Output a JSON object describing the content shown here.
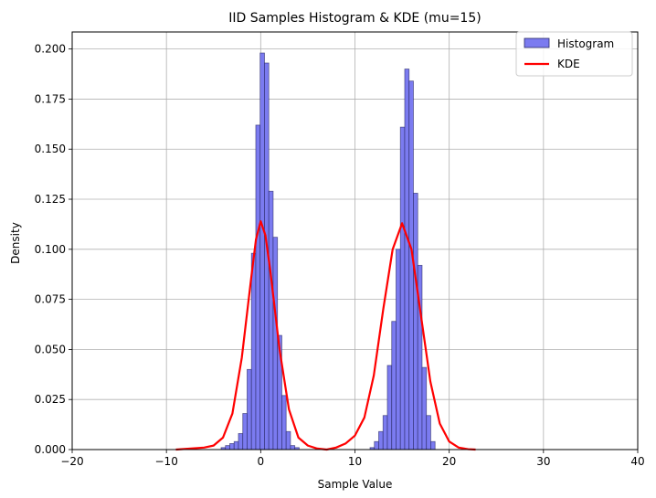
{
  "chart_data": {
    "type": "bar",
    "title": "IID Samples Histogram & KDE (mu=15)",
    "xlabel": "Sample Value",
    "ylabel": "Density",
    "xlim": [
      -20,
      40
    ],
    "ylim": [
      0,
      0.2085
    ],
    "xticks": [
      -20,
      -10,
      0,
      10,
      20,
      30,
      40
    ],
    "xtick_labels": [
      "−20",
      "−10",
      "0",
      "10",
      "20",
      "30",
      "40"
    ],
    "yticks": [
      0,
      0.025,
      0.05,
      0.075,
      0.1,
      0.125,
      0.15,
      0.175,
      0.2
    ],
    "ytick_labels": [
      "0.000",
      "0.025",
      "0.050",
      "0.075",
      "0.100",
      "0.125",
      "0.150",
      "0.175",
      "0.200"
    ],
    "grid": true,
    "legend_position": "upper right",
    "colors": {
      "histogram_fill": "#7b7bf0",
      "histogram_edge": "#2a2a66",
      "kde": "#ff0000"
    },
    "series": [
      {
        "name": "Histogram",
        "kind": "histogram",
        "bin_width": 0.46,
        "bins": [
          [
            -4.2,
            0.001
          ],
          [
            -3.74,
            0.002
          ],
          [
            -3.28,
            0.003
          ],
          [
            -2.82,
            0.004
          ],
          [
            -2.36,
            0.008
          ],
          [
            -1.9,
            0.018
          ],
          [
            -1.44,
            0.04
          ],
          [
            -0.98,
            0.098
          ],
          [
            -0.52,
            0.162
          ],
          [
            -0.06,
            0.198
          ],
          [
            0.4,
            0.193
          ],
          [
            0.86,
            0.129
          ],
          [
            1.32,
            0.106
          ],
          [
            1.78,
            0.057
          ],
          [
            2.24,
            0.027
          ],
          [
            2.7,
            0.009
          ],
          [
            3.16,
            0.002
          ],
          [
            3.62,
            0.001
          ],
          [
            11.6,
            0.001
          ],
          [
            12.06,
            0.004
          ],
          [
            12.52,
            0.009
          ],
          [
            12.98,
            0.017
          ],
          [
            13.44,
            0.042
          ],
          [
            13.9,
            0.064
          ],
          [
            14.36,
            0.1
          ],
          [
            14.82,
            0.161
          ],
          [
            15.28,
            0.19
          ],
          [
            15.74,
            0.184
          ],
          [
            16.2,
            0.128
          ],
          [
            16.66,
            0.092
          ],
          [
            17.12,
            0.041
          ],
          [
            17.58,
            0.017
          ],
          [
            18.04,
            0.004
          ]
        ]
      },
      {
        "name": "KDE",
        "kind": "line",
        "points": [
          [
            -9,
            0.0
          ],
          [
            -6,
            0.001
          ],
          [
            -5,
            0.002
          ],
          [
            -4,
            0.006
          ],
          [
            -3,
            0.018
          ],
          [
            -2,
            0.046
          ],
          [
            -1,
            0.086
          ],
          [
            -0.5,
            0.105
          ],
          [
            0,
            0.114
          ],
          [
            0.5,
            0.107
          ],
          [
            1,
            0.09
          ],
          [
            2,
            0.05
          ],
          [
            3,
            0.02
          ],
          [
            4,
            0.006
          ],
          [
            5,
            0.002
          ],
          [
            6,
            0.0005
          ],
          [
            7,
            0.0
          ],
          [
            8,
            0.001
          ],
          [
            9,
            0.003
          ],
          [
            10,
            0.007
          ],
          [
            11,
            0.016
          ],
          [
            12,
            0.037
          ],
          [
            13,
            0.07
          ],
          [
            14,
            0.1
          ],
          [
            15,
            0.113
          ],
          [
            16,
            0.1
          ],
          [
            17,
            0.067
          ],
          [
            18,
            0.034
          ],
          [
            19,
            0.013
          ],
          [
            20,
            0.004
          ],
          [
            21,
            0.001
          ],
          [
            22,
            0.0002
          ],
          [
            22.8,
            0.0
          ]
        ]
      }
    ]
  }
}
